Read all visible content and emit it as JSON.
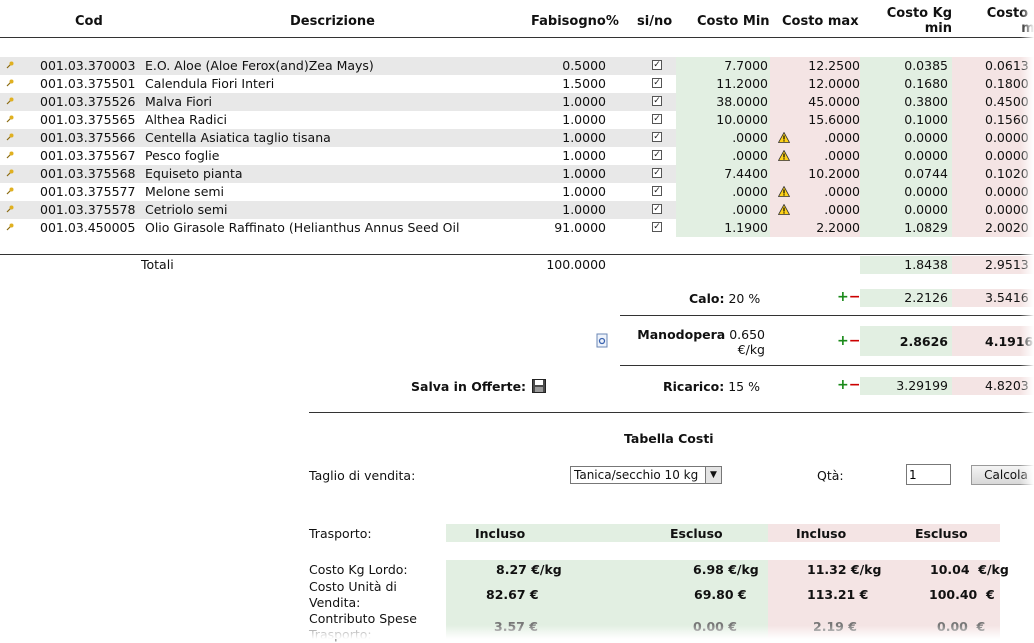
{
  "table": {
    "headers": {
      "cod": "Cod",
      "descrizione": "Descrizione",
      "fabisogno": "Fabisogno%",
      "sino": "si/no",
      "costo_min": "Costo Min",
      "costo_max": "Costo max",
      "costo_kg_min_l1": "Costo Kg",
      "costo_kg_min_l2": "min",
      "costo_kg_max_l1": "Costo Kg",
      "costo_kg_max_l2": "max"
    },
    "rows": [
      {
        "cod": "001.03.370003",
        "desc": "E.O. Aloe (Aloe Ferox(and)Zea Mays)",
        "fab": "0.5000",
        "min": "7.7000",
        "max": "12.2500",
        "kgmin": "0.0385",
        "kgmax": "0.0613",
        "warn": false
      },
      {
        "cod": "001.03.375501",
        "desc": "Calendula Fiori Interi",
        "fab": "1.5000",
        "min": "11.2000",
        "max": "12.0000",
        "kgmin": "0.1680",
        "kgmax": "0.1800",
        "warn": false
      },
      {
        "cod": "001.03.375526",
        "desc": "Malva Fiori",
        "fab": "1.0000",
        "min": "38.0000",
        "max": "45.0000",
        "kgmin": "0.3800",
        "kgmax": "0.4500",
        "warn": false
      },
      {
        "cod": "001.03.375565",
        "desc": "Althea Radici",
        "fab": "1.0000",
        "min": "10.0000",
        "max": "15.6000",
        "kgmin": "0.1000",
        "kgmax": "0.1560",
        "warn": false
      },
      {
        "cod": "001.03.375566",
        "desc": "Centella Asiatica taglio tisana",
        "fab": "1.0000",
        "min": ".0000",
        "max": ".0000",
        "kgmin": "0.0000",
        "kgmax": "0.0000",
        "warn": true
      },
      {
        "cod": "001.03.375567",
        "desc": "Pesco foglie",
        "fab": "1.0000",
        "min": ".0000",
        "max": ".0000",
        "kgmin": "0.0000",
        "kgmax": "0.0000",
        "warn": true
      },
      {
        "cod": "001.03.375568",
        "desc": "Equiseto pianta",
        "fab": "1.0000",
        "min": "7.4400",
        "max": "10.2000",
        "kgmin": "0.0744",
        "kgmax": "0.1020",
        "warn": false
      },
      {
        "cod": "001.03.375577",
        "desc": "Melone semi",
        "fab": "1.0000",
        "min": ".0000",
        "max": ".0000",
        "kgmin": "0.0000",
        "kgmax": "0.0000",
        "warn": true
      },
      {
        "cod": "001.03.375578",
        "desc": "Cetriolo semi",
        "fab": "1.0000",
        "min": ".0000",
        "max": ".0000",
        "kgmin": "0.0000",
        "kgmax": "0.0000",
        "warn": true
      },
      {
        "cod": "001.03.450005",
        "desc": "Olio Girasole Raffinato (Helianthus Annus Seed Oil",
        "fab": "91.0000",
        "min": "1.1900",
        "max": "2.2000",
        "kgmin": "1.0829",
        "kgmax": "2.0020",
        "warn": false
      }
    ],
    "totali": {
      "label": "Totali",
      "fab": "100.0000",
      "kgmin": "1.8438",
      "kgmax": "2.9513"
    }
  },
  "calo": {
    "label": "Calo:",
    "value": "20 %",
    "kgmin": "2.2126",
    "kgmax": "3.5416"
  },
  "manodopera": {
    "label": "Manodopera",
    "value": "0.650",
    "unit": "€/kg",
    "kgmin": "2.8626",
    "kgmax": "4.1916"
  },
  "ricarico": {
    "label": "Ricarico:",
    "value": "15 %",
    "kgmin": "3.29199",
    "kgmax": "4.8203"
  },
  "salva": {
    "label": "Salva in Offerte:"
  },
  "tabella": {
    "title": "Tabella Costi",
    "taglio_label": "Taglio di vendita:",
    "taglio_value": "Tanica/secchio 10 kg",
    "qta_label": "Qtà:",
    "qta_value": "1",
    "calcola_label": "Calcola",
    "trasporto_label": "Trasporto:",
    "col_incluso_min": "Incluso",
    "col_escluso_min": "Escluso",
    "col_incluso_max": "Incluso",
    "col_escluso_max": "Escluso",
    "lordo_label": "Costo Kg Lordo:",
    "lordo": [
      "8.27 €/kg",
      "6.98 €/kg",
      "11.32 €/kg",
      "10.04  €/kg"
    ],
    "unita_label_l1": "Costo Unità di",
    "unita_label_l2": "Vendita:",
    "unita": [
      "82.67 €",
      "69.80 €",
      "113.21 €",
      "100.40  €"
    ],
    "contributo_label_l1": "Contributo Spese",
    "contributo_label_l2": "Trasporto:",
    "contributo": [
      "3.57 €",
      "0.00 €",
      "2.19 €",
      "0.00  €"
    ]
  },
  "colors": {
    "green": "#e2efe2",
    "red": "#f4e4e4",
    "stripe": "#e8e8e8"
  }
}
